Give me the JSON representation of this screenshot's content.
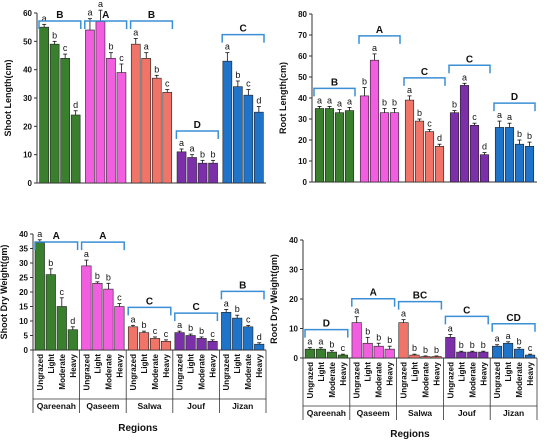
{
  "chart_data": [
    {
      "id": "shoot_length",
      "type": "bar",
      "ylabel": "Shoot Length(cm)",
      "ylim": [
        0,
        60
      ],
      "yticks": [
        0,
        10,
        20,
        30,
        40,
        50,
        60
      ],
      "groups": [
        "Qareenah",
        "Qaseem",
        "Salwa",
        "Jouf",
        "Jizan"
      ],
      "categories": [
        "Ungrazed",
        "Light",
        "Moderate",
        "Heavy"
      ],
      "show_xlabels": false,
      "values": [
        [
          55,
          49,
          44,
          24
        ],
        [
          54,
          57,
          44,
          39
        ],
        [
          49,
          44,
          37,
          32
        ],
        [
          11,
          9,
          7,
          7
        ],
        [
          43,
          34,
          31,
          25
        ]
      ],
      "errors": [
        [
          1,
          1,
          1.5,
          1.5
        ],
        [
          4,
          4,
          2,
          3
        ],
        [
          2,
          2,
          1,
          1
        ],
        [
          1,
          1,
          1,
          1
        ],
        [
          3,
          2,
          2,
          2
        ]
      ],
      "letters": [
        [
          "a",
          "b",
          "c",
          "d"
        ],
        [
          "a",
          "a",
          "b",
          "c"
        ],
        [
          "a",
          "a",
          "b",
          "c"
        ],
        [
          "a",
          "a",
          "b",
          "b"
        ],
        [
          "a",
          "b",
          "c",
          "d"
        ]
      ],
      "group_letters": [
        "B",
        "A",
        "B",
        "D",
        "C"
      ]
    },
    {
      "id": "root_length",
      "type": "bar",
      "ylabel": "Root Length(cm)",
      "ylim": [
        0,
        80
      ],
      "yticks": [
        0,
        10,
        20,
        30,
        40,
        50,
        60,
        70,
        80
      ],
      "groups": [
        "Qareenah",
        "Qaseem",
        "Salwa",
        "Jouf",
        "Jizan"
      ],
      "categories": [
        "Ungrazed",
        "Light",
        "Moderate",
        "Heavy"
      ],
      "show_xlabels": false,
      "values": [
        [
          35,
          35,
          33,
          34
        ],
        [
          41,
          58,
          33,
          33
        ],
        [
          39,
          29,
          24,
          17
        ],
        [
          33,
          46,
          27,
          13
        ],
        [
          26,
          26,
          18,
          17
        ]
      ],
      "errors": [
        [
          1,
          1,
          1.5,
          1.5
        ],
        [
          4,
          3,
          2,
          2
        ],
        [
          2,
          1,
          1,
          1
        ],
        [
          1,
          1,
          1,
          1
        ],
        [
          3,
          2,
          2,
          2
        ]
      ],
      "letters": [
        [
          "a",
          "a",
          "a",
          "a"
        ],
        [
          "b",
          "a",
          "b",
          "b"
        ],
        [
          "a",
          "b",
          "c",
          "d"
        ],
        [
          "b",
          "a",
          "c",
          "d"
        ],
        [
          "a",
          "a",
          "b",
          "b"
        ]
      ],
      "group_letters": [
        "B",
        "A",
        "C",
        "C",
        "D"
      ]
    },
    {
      "id": "shoot_dry_weight",
      "type": "bar",
      "ylabel": "Shoot Dry Weight(gm)",
      "ylim": [
        0,
        40
      ],
      "yticks": [
        0,
        5,
        10,
        15,
        20,
        25,
        30,
        35,
        40
      ],
      "groups": [
        "Qareenah",
        "Qaseem",
        "Salwa",
        "Jouf",
        "Jizan"
      ],
      "categories": [
        "Ungrazed",
        "Light",
        "Moderate",
        "Heavy"
      ],
      "show_xlabels": true,
      "values": [
        [
          37,
          26,
          15,
          7
        ],
        [
          29,
          23,
          21,
          15
        ],
        [
          8,
          6,
          4,
          3
        ],
        [
          6,
          5,
          4,
          3
        ],
        [
          13,
          11,
          8,
          2
        ]
      ],
      "errors": [
        [
          1,
          2,
          3,
          1
        ],
        [
          2,
          0.5,
          2,
          1
        ],
        [
          0.5,
          0.5,
          0.5,
          0.5
        ],
        [
          0.5,
          0.5,
          0.5,
          0.5
        ],
        [
          1,
          1,
          0.5,
          0.5
        ]
      ],
      "letters": [
        [
          "a",
          "b",
          "c",
          "d"
        ],
        [
          "a",
          "b",
          "b",
          "c"
        ],
        [
          "a",
          "b",
          "c",
          "c"
        ],
        [
          "a",
          "b",
          "b",
          "c"
        ],
        [
          "a",
          "b",
          "c",
          "d"
        ]
      ],
      "group_letters": [
        "A",
        "A",
        "C",
        "C",
        "B"
      ]
    },
    {
      "id": "root_dry_weight",
      "type": "bar",
      "ylabel": "Root Dry Weight(gm)",
      "ylim": [
        0,
        40
      ],
      "yticks": [
        0,
        10,
        20,
        30,
        40
      ],
      "groups": [
        "Qareenah",
        "Qaseem",
        "Salwa",
        "Jouf",
        "Jizan"
      ],
      "categories": [
        "Ungrazed",
        "Light",
        "Moderate",
        "Heavy"
      ],
      "show_xlabels": true,
      "values": [
        [
          3,
          3,
          2,
          1
        ],
        [
          12,
          5,
          4,
          3
        ],
        [
          12,
          1,
          0.5,
          0.5
        ],
        [
          7,
          2,
          2,
          2
        ],
        [
          4,
          5,
          3,
          1
        ]
      ],
      "errors": [
        [
          0.5,
          0.5,
          0.5,
          0.3
        ],
        [
          2,
          2,
          1,
          1
        ],
        [
          1,
          0.3,
          0.2,
          0.2
        ],
        [
          1,
          0.3,
          0.3,
          0.3
        ],
        [
          0.5,
          0.5,
          0.5,
          0.3
        ]
      ],
      "letters": [
        [
          "a",
          "a",
          "b",
          "c"
        ],
        [
          "a",
          "b",
          "b",
          "b"
        ],
        [
          "a",
          "b",
          "b",
          "b"
        ],
        [
          "a",
          "b",
          "b",
          "b"
        ],
        [
          "a",
          "a",
          "b",
          "c"
        ]
      ],
      "group_letters": [
        "D",
        "A",
        "BC",
        "C",
        "CD"
      ]
    }
  ],
  "colors": [
    "#3a7f2e",
    "#f25ee0",
    "#f07468",
    "#7b2fa8",
    "#1f73c9"
  ],
  "bracket_color": "#3a8fd6",
  "xlabel_left": "Regions",
  "xlabel_right": "Regions"
}
